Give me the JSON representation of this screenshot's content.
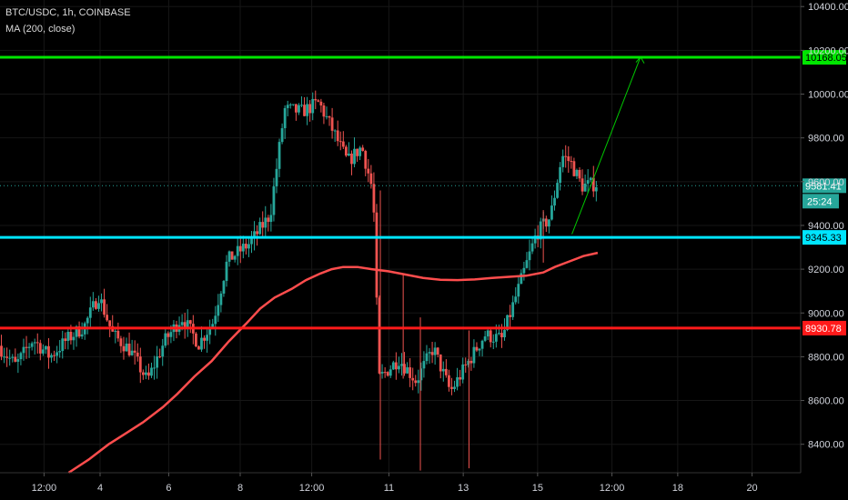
{
  "header": {
    "symbol_line": "BTC/USDC, 1h, COINBASE",
    "indicator_line": "MA (200, close)"
  },
  "chart_data": {
    "type": "candlestick",
    "ylim": [
      8270,
      10430
    ],
    "y_ticks": [
      8400,
      8600,
      8800,
      9000,
      9200,
      9400,
      9600,
      9800,
      10000,
      10200,
      10400
    ],
    "y_tick_labels": [
      "8400.00",
      "8600.00",
      "8800.00",
      "9000.00",
      "9200.00",
      "9400.00",
      "9600.00",
      "9800.00",
      "10000.00",
      "10200.00",
      "10400.00"
    ],
    "x_tick_labels": [
      "12:00",
      "4",
      "6",
      "8",
      "12:00",
      "11",
      "13",
      "15",
      "12:00",
      "18",
      "20"
    ],
    "horizontal_levels": [
      {
        "value": 10168.05,
        "label": "10168.05",
        "color": "#00e600"
      },
      {
        "value": 9345.33,
        "label": "9345.33",
        "color": "#00e5ff"
      },
      {
        "value": 8930.78,
        "label": "8930.78",
        "color": "#ff1a1a"
      }
    ],
    "last_price": {
      "value": 9581.41,
      "label": "9581.41",
      "countdown": "25:24",
      "color": "#26a69a"
    },
    "ma200": [
      {
        "t": 0.12,
        "p": 8270
      },
      {
        "t": 0.155,
        "p": 8330
      },
      {
        "t": 0.19,
        "p": 8400
      },
      {
        "t": 0.22,
        "p": 8450
      },
      {
        "t": 0.25,
        "p": 8500
      },
      {
        "t": 0.285,
        "p": 8570
      },
      {
        "t": 0.31,
        "p": 8630
      },
      {
        "t": 0.34,
        "p": 8710
      },
      {
        "t": 0.37,
        "p": 8780
      },
      {
        "t": 0.4,
        "p": 8870
      },
      {
        "t": 0.43,
        "p": 8950
      },
      {
        "t": 0.455,
        "p": 9020
      },
      {
        "t": 0.48,
        "p": 9070
      },
      {
        "t": 0.51,
        "p": 9110
      },
      {
        "t": 0.535,
        "p": 9150
      },
      {
        "t": 0.56,
        "p": 9180
      },
      {
        "t": 0.58,
        "p": 9200
      },
      {
        "t": 0.6,
        "p": 9210
      },
      {
        "t": 0.625,
        "p": 9210
      },
      {
        "t": 0.65,
        "p": 9200
      },
      {
        "t": 0.68,
        "p": 9190
      },
      {
        "t": 0.71,
        "p": 9175
      },
      {
        "t": 0.74,
        "p": 9160
      },
      {
        "t": 0.77,
        "p": 9152
      },
      {
        "t": 0.8,
        "p": 9150
      },
      {
        "t": 0.83,
        "p": 9153
      },
      {
        "t": 0.86,
        "p": 9160
      },
      {
        "t": 0.89,
        "p": 9165
      },
      {
        "t": 0.92,
        "p": 9170
      },
      {
        "t": 0.95,
        "p": 9185
      },
      {
        "t": 0.97,
        "p": 9210
      },
      {
        "t": 1.0,
        "p": 9240
      },
      {
        "t": 1.02,
        "p": 9260
      },
      {
        "t": 1.045,
        "p": 9275
      }
    ],
    "projection": [
      {
        "t": 1.0,
        "p": 9360
      },
      {
        "t": 1.12,
        "p": 10170
      }
    ],
    "candle_anchors": [
      {
        "t": 0.0,
        "p": 8850
      },
      {
        "t": 0.03,
        "p": 8760
      },
      {
        "t": 0.06,
        "p": 8880
      },
      {
        "t": 0.09,
        "p": 8800
      },
      {
        "t": 0.12,
        "p": 8880
      },
      {
        "t": 0.15,
        "p": 8940
      },
      {
        "t": 0.175,
        "p": 9080
      },
      {
        "t": 0.2,
        "p": 8900
      },
      {
        "t": 0.23,
        "p": 8830
      },
      {
        "t": 0.26,
        "p": 8690
      },
      {
        "t": 0.29,
        "p": 8870
      },
      {
        "t": 0.32,
        "p": 8980
      },
      {
        "t": 0.35,
        "p": 8860
      },
      {
        "t": 0.375,
        "p": 8960
      },
      {
        "t": 0.4,
        "p": 9240
      },
      {
        "t": 0.44,
        "p": 9320
      },
      {
        "t": 0.475,
        "p": 9450
      },
      {
        "t": 0.5,
        "p": 9930
      },
      {
        "t": 0.53,
        "p": 9920
      },
      {
        "t": 0.56,
        "p": 9960
      },
      {
        "t": 0.585,
        "p": 9830
      },
      {
        "t": 0.61,
        "p": 9690
      },
      {
        "t": 0.635,
        "p": 9760
      },
      {
        "t": 0.655,
        "p": 9550
      },
      {
        "t": 0.665,
        "p": 8700
      },
      {
        "t": 0.7,
        "p": 8790
      },
      {
        "t": 0.73,
        "p": 8690
      },
      {
        "t": 0.76,
        "p": 8840
      },
      {
        "t": 0.79,
        "p": 8640
      },
      {
        "t": 0.82,
        "p": 8770
      },
      {
        "t": 0.85,
        "p": 8900
      },
      {
        "t": 0.88,
        "p": 8880
      },
      {
        "t": 0.91,
        "p": 9120
      },
      {
        "t": 0.94,
        "p": 9360
      },
      {
        "t": 0.965,
        "p": 9440
      },
      {
        "t": 0.985,
        "p": 9720
      },
      {
        "t": 1.0,
        "p": 9690
      },
      {
        "t": 1.02,
        "p": 9580
      },
      {
        "t": 1.045,
        "p": 9590
      }
    ],
    "grid": true
  }
}
